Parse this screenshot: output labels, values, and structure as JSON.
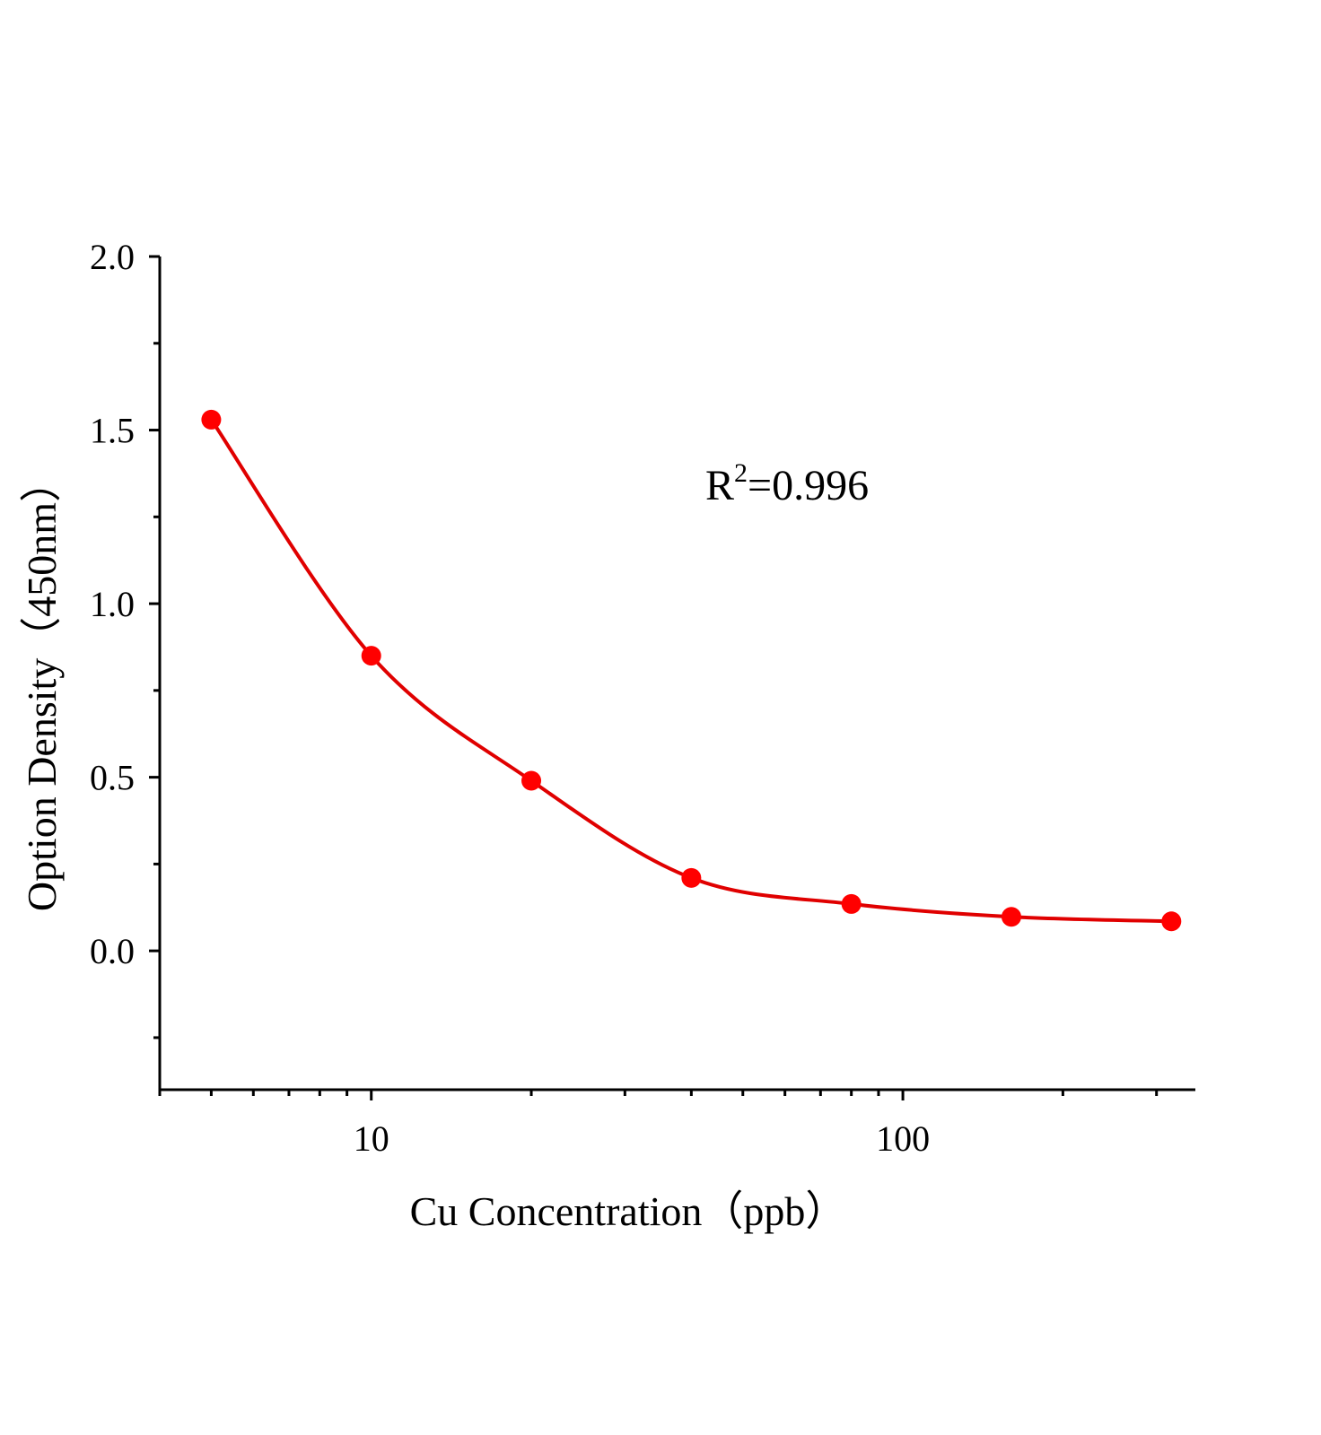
{
  "chart_data": {
    "type": "scatter",
    "title": "",
    "xlabel": "Cu  Concentration（ppb）",
    "ylabel": "Option Density（450nm）",
    "xscale": "log",
    "xlim": [
      4,
      355
    ],
    "ylim": [
      -0.4,
      2.0
    ],
    "x_ticks": [
      10,
      100
    ],
    "x_tick_labels": [
      "10",
      "100"
    ],
    "y_ticks": [
      0.0,
      0.5,
      1.0,
      1.5,
      2.0
    ],
    "y_tick_labels": [
      "0.0",
      "0.5",
      "1.0",
      "1.5",
      "2.0"
    ],
    "grid": false,
    "series": [
      {
        "x": [
          5,
          10,
          20,
          40,
          80,
          160,
          320
        ],
        "y": [
          1.53,
          0.85,
          0.49,
          0.21,
          0.135,
          0.098,
          0.085
        ],
        "color": "#ff0000",
        "marker": "circle",
        "fit_line": true,
        "fit_color": "#e00000"
      }
    ],
    "annotation": {
      "prefix": "R",
      "sup": "2",
      "suffix": "=0.996"
    }
  }
}
